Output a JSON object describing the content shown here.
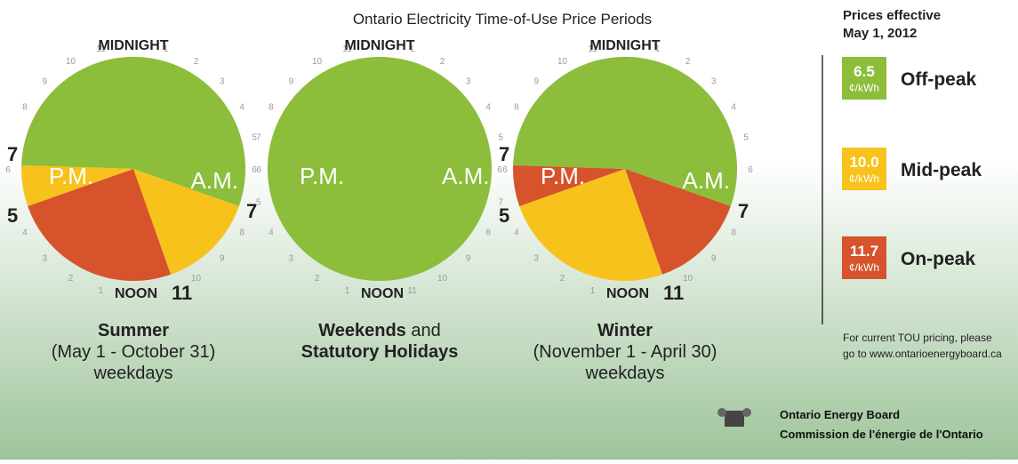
{
  "title": "Ontario Electricity Time-of-Use Price Periods",
  "prices_effective": [
    "Prices effective",
    "May 1, 2012"
  ],
  "clock_hours": [
    "1",
    "2",
    "3",
    "4",
    "5",
    "6",
    "7",
    "8",
    "9",
    "10",
    "11"
  ],
  "clocks": [
    {
      "midnight": "MIDNIGHT",
      "noon": "NOON",
      "pm": "P.M.",
      "am": "A.M.",
      "marks": {
        "pm_start": "7",
        "pm_end": "5",
        "am_start": "7",
        "am_end": "11"
      },
      "caption": [
        "Summer",
        "(May 1 - October 31)",
        "weekdays"
      ]
    },
    {
      "midnight": "MIDNIGHT",
      "noon": "NOON",
      "pm": "P.M.",
      "am": "A.M.",
      "caption": [
        "Weekends",
        " and",
        "Statutory Holidays"
      ]
    },
    {
      "midnight": "MIDNIGHT",
      "noon": "NOON",
      "pm": "P.M.",
      "am": "A.M.",
      "marks": {
        "pm_start": "7",
        "pm_end": "5",
        "am_start": "7",
        "am_end": "11"
      },
      "caption": [
        "Winter",
        "(November 1 - April 30)",
        "weekdays"
      ]
    }
  ],
  "legend": [
    {
      "price": "6.5",
      "unit": "¢/kWh",
      "label": "Off-peak"
    },
    {
      "price": "10.0",
      "unit": "¢/kWh",
      "label": "Mid-peak"
    },
    {
      "price": "11.7",
      "unit": "¢/kWh",
      "label": "On-peak"
    }
  ],
  "note": [
    "For current TOU pricing, please",
    "go to www.ontarioenergyboard.ca"
  ],
  "footer": [
    "Ontario Energy Board",
    "Commission de l'énergie de l'Ontario"
  ]
}
